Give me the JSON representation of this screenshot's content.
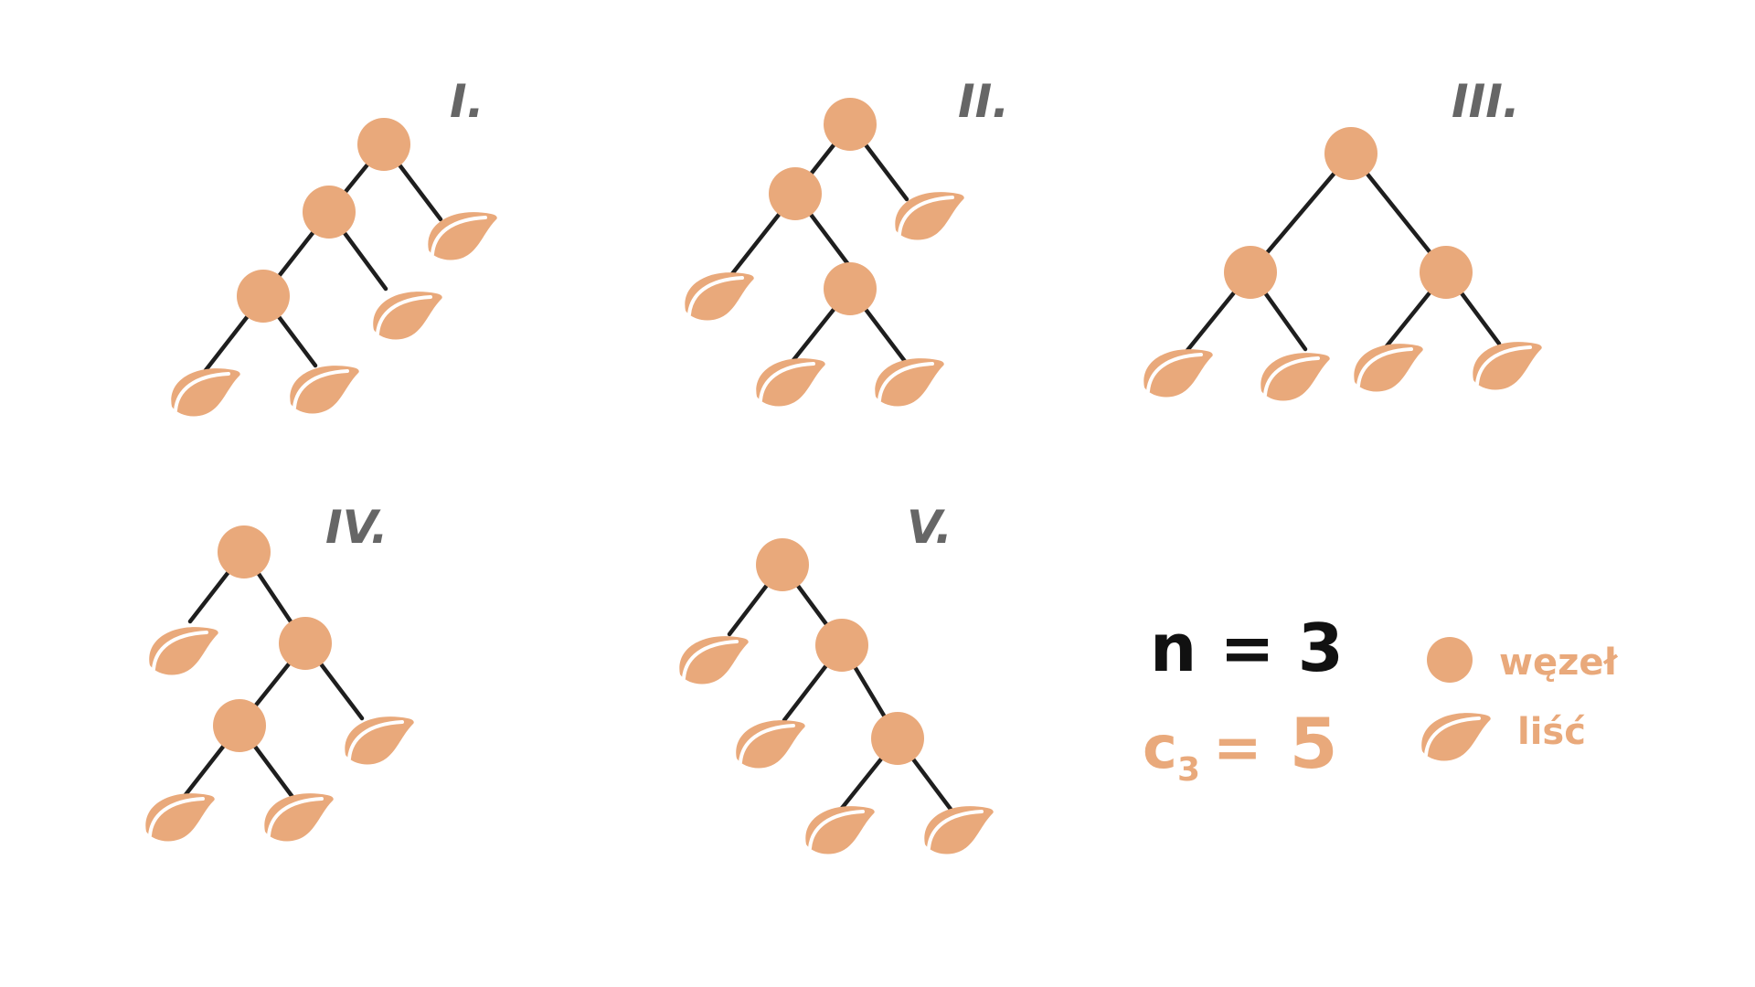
{
  "trees": [
    {
      "label": "I."
    },
    {
      "label": "II."
    },
    {
      "label": "III."
    },
    {
      "label": "IV."
    },
    {
      "label": "V."
    }
  ],
  "formula": {
    "n_text": "n = 3",
    "c_symbol": "c",
    "c_subscript": "3",
    "c_equals": "=",
    "c_value": "5"
  },
  "legend": {
    "node_label": "węzeł",
    "leaf_label": "liść"
  },
  "colors": {
    "node": "#E9A97B",
    "edge": "#1e1e1e",
    "roman_label": "#666666",
    "formula_n": "#111111"
  },
  "icons": {
    "node": "circle-node-icon",
    "leaf": "leaf-icon"
  }
}
